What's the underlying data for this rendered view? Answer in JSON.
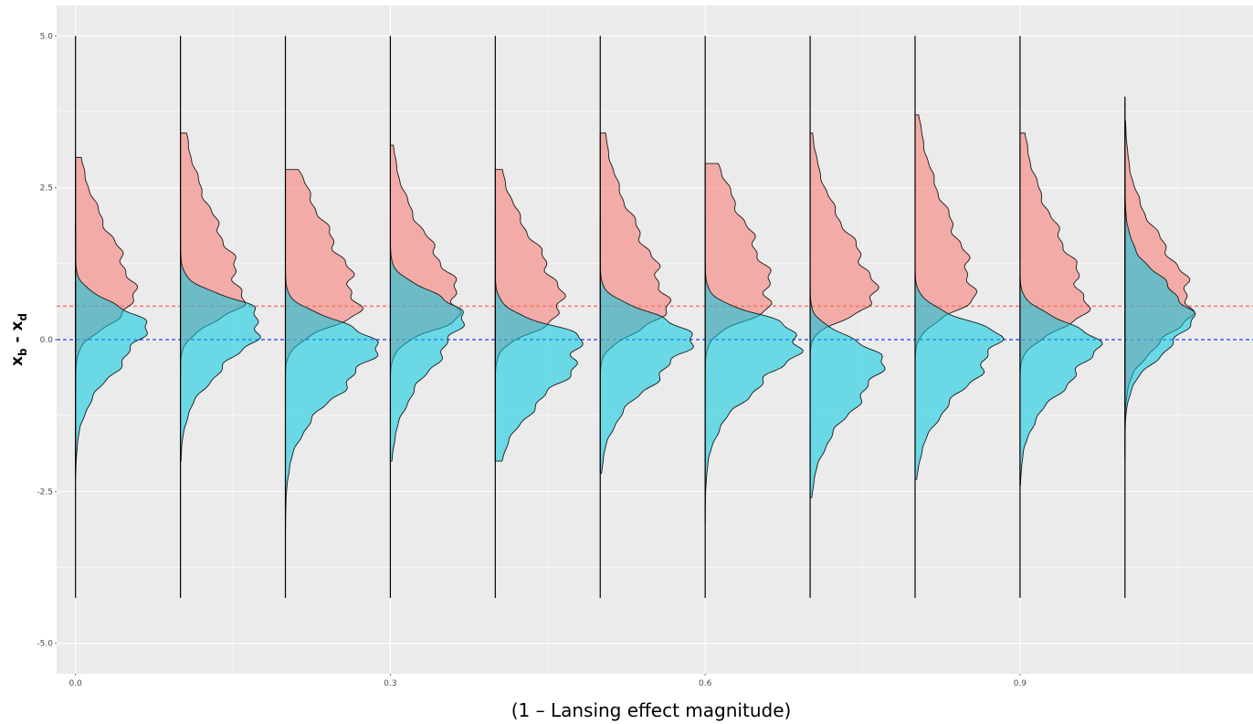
{
  "chart_data": {
    "type": "area",
    "subtype": "violin",
    "title": "",
    "xlabel": "(1 – Lansing effect magnitude)",
    "ylabel": {
      "main1": "x",
      "sub1": "b",
      "sep": " - ",
      "main2": "x",
      "sub2": "d"
    },
    "xlim": [
      -0.018,
      1.122
    ],
    "ylim": [
      -5.5,
      5.5
    ],
    "x_ticks": [
      0.0,
      0.3,
      0.6,
      0.9
    ],
    "x_tick_labels": [
      "0.0",
      "0.3",
      "0.6",
      "0.9"
    ],
    "y_ticks": [
      -5.0,
      -2.5,
      0.0,
      2.5,
      5.0
    ],
    "y_tick_labels": [
      "-5.0",
      "-2.5",
      "0.0",
      "2.5",
      "5.0"
    ],
    "grid": true,
    "legend": "none",
    "reference_lines": [
      {
        "y": 0.55,
        "color": "#F8766D",
        "style": "dashed"
      },
      {
        "y": 0.0,
        "color": "#3A5BFF",
        "style": "dashed"
      }
    ],
    "series_colors": {
      "red": "#F8766D",
      "cyan": "#00C8E0"
    },
    "positions": [
      0.0,
      0.1,
      0.2,
      0.3,
      0.4,
      0.5,
      0.6,
      0.7,
      0.8,
      0.9,
      1.0
    ],
    "line_range": [
      [
        -4.25,
        5.0
      ],
      [
        -4.25,
        5.0
      ],
      [
        -4.25,
        5.0
      ],
      [
        -4.25,
        5.0
      ],
      [
        -4.25,
        5.0
      ],
      [
        -4.25,
        5.0
      ],
      [
        -4.25,
        5.0
      ],
      [
        -4.25,
        5.0
      ],
      [
        -4.25,
        5.0
      ],
      [
        -4.25,
        5.0
      ],
      [
        -4.25,
        4.0
      ]
    ],
    "series": [
      {
        "name": "",
        "color_key": "red",
        "mode": [
          0.62,
          0.6,
          0.48,
          0.45,
          0.46,
          0.45,
          0.62,
          0.62,
          0.7,
          0.45,
          0.55
        ],
        "peak_width": [
          0.055,
          0.057,
          0.067,
          0.065,
          0.063,
          0.062,
          0.062,
          0.061,
          0.054,
          0.061,
          0.062
        ],
        "spread_up": [
          1.1,
          1.3,
          1.3,
          1.1,
          1.1,
          1.3,
          1.3,
          1.1,
          1.3,
          1.3,
          1.0
        ],
        "spread_down": [
          0.35,
          0.3,
          0.3,
          0.3,
          0.3,
          0.3,
          0.3,
          0.25,
          0.3,
          0.3,
          0.55
        ],
        "range": [
          [
            -2.3,
            3.0
          ],
          [
            -2.0,
            3.4
          ],
          [
            -2.0,
            2.8
          ],
          [
            -2.0,
            3.2
          ],
          [
            -2.0,
            2.8
          ],
          [
            -2.2,
            3.4
          ],
          [
            -2.0,
            2.9
          ],
          [
            -2.0,
            3.4
          ],
          [
            -2.4,
            3.7
          ],
          [
            -2.3,
            3.4
          ],
          [
            -2.0,
            3.6
          ]
        ]
      },
      {
        "name": "",
        "color_key": "cyan",
        "mode": [
          0.28,
          0.38,
          0.0,
          0.48,
          -0.05,
          0.12,
          0.08,
          -0.28,
          0.05,
          0.0,
          0.35
        ],
        "peak_width": [
          0.065,
          0.077,
          0.085,
          0.067,
          0.082,
          0.085,
          0.09,
          0.067,
          0.077,
          0.072,
          0.062
        ],
        "spread_up": [
          0.3,
          0.3,
          0.3,
          0.3,
          0.3,
          0.3,
          0.3,
          0.3,
          0.3,
          0.3,
          0.6
        ],
        "spread_down": [
          0.75,
          0.75,
          0.85,
          0.9,
          0.85,
          0.8,
          0.8,
          0.85,
          0.85,
          0.75,
          0.55
        ],
        "range": [
          [
            -2.2,
            1.9
          ],
          [
            -2.0,
            2.0
          ],
          [
            -3.9,
            1.4
          ],
          [
            -2.0,
            2.0
          ],
          [
            -2.0,
            2.1
          ],
          [
            -2.2,
            2.0
          ],
          [
            -3.0,
            2.0
          ],
          [
            -2.6,
            2.4
          ],
          [
            -2.3,
            3.7
          ],
          [
            -2.4,
            3.2
          ],
          [
            -1.9,
            3.9
          ]
        ]
      }
    ]
  }
}
